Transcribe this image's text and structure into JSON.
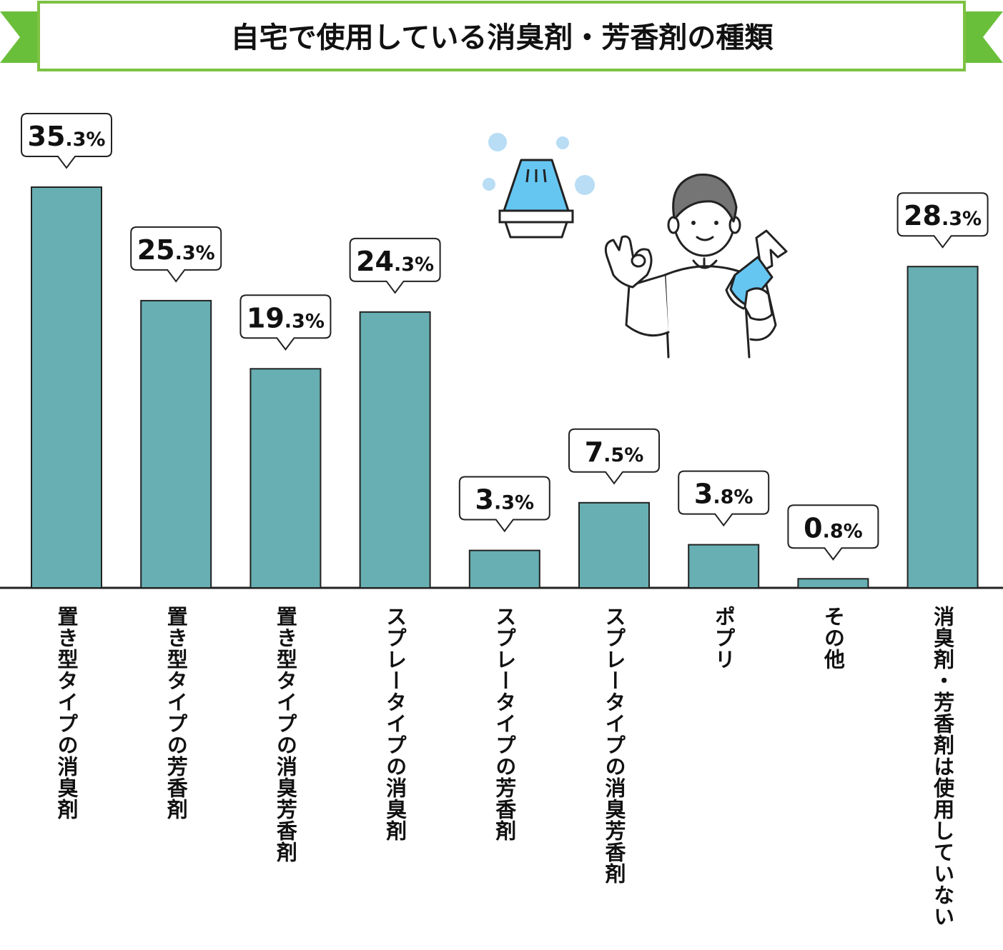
{
  "chart_data": {
    "type": "bar",
    "title": "自宅で使用している消臭剤・芳香剤の種類",
    "categories": [
      "置き型タイプの消臭剤",
      "置き型タイプの芳香剤",
      "置き型タイプの消臭芳香剤",
      "スプレータイプの消臭剤",
      "スプレータイプの芳香剤",
      "スプレータイプの消臭芳香剤",
      "ポプリ",
      "その他",
      "消臭剤・芳香剤は使用していない"
    ],
    "values": [
      35.3,
      25.3,
      19.3,
      24.3,
      3.3,
      7.5,
      3.8,
      0.8,
      28.3
    ],
    "value_labels": [
      {
        "int": "35",
        "dec": ".3%"
      },
      {
        "int": "25",
        "dec": ".3%"
      },
      {
        "int": "19",
        "dec": ".3%"
      },
      {
        "int": "24",
        "dec": ".3%"
      },
      {
        "int": "3",
        "dec": ".3%"
      },
      {
        "int": "7",
        "dec": ".5%"
      },
      {
        "int": "3",
        "dec": ".8%"
      },
      {
        "int": "0",
        "dec": ".8%"
      },
      {
        "int": "28",
        "dec": ".3%"
      }
    ],
    "unit": "%",
    "ylim": [
      0,
      35.3
    ],
    "grid": false,
    "legend": "none",
    "colors": {
      "bar": "#67afb2",
      "title_border": "#7dc242",
      "ribbon": "#6abf3a"
    }
  },
  "illustration": {
    "icons": [
      "air-freshener-icon",
      "person-with-spray-bottle-icon"
    ]
  }
}
